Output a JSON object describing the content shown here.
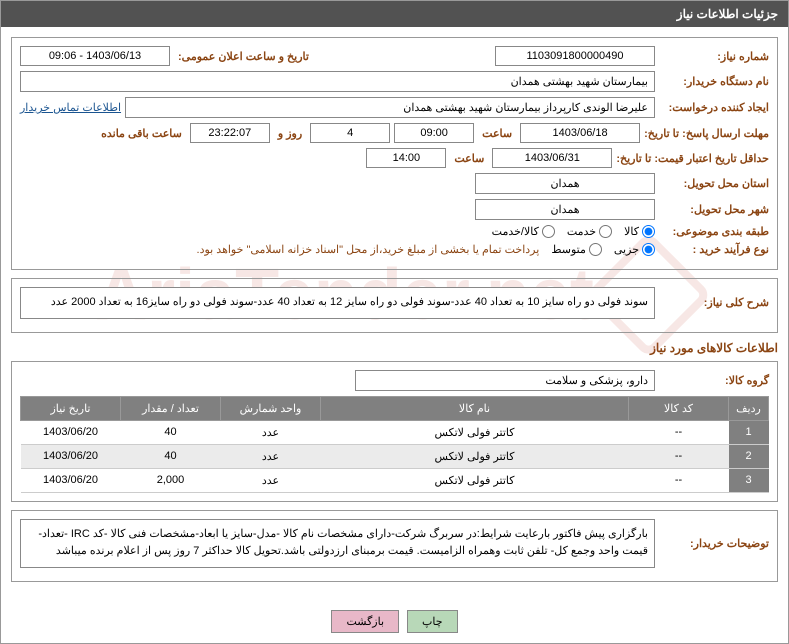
{
  "header": {
    "title": "جزئیات اطلاعات نیاز"
  },
  "fields": {
    "need_no_label": "شماره نیاز:",
    "need_no": "1103091800000490",
    "announce_label": "تاریخ و ساعت اعلان عمومی:",
    "announce": "1403/06/13 - 09:06",
    "buyer_label": "نام دستگاه خریدار:",
    "buyer": "بیمارستان شهید بهشتی همدان",
    "requester_label": "ایجاد کننده درخواست:",
    "requester": "علیرضا الوندی کارپرداز بیمارستان شهید بهشتی همدان",
    "contact_link": "اطلاعات تماس خریدار",
    "reply_deadline_label": "مهلت ارسال پاسخ: تا تاریخ:",
    "reply_date": "1403/06/18",
    "time_label": "ساعت",
    "reply_time": "09:00",
    "days": "4",
    "days_label": "روز و",
    "remaining_time": "23:22:07",
    "remaining_label": "ساعت باقی مانده",
    "validity_label": "حداقل تاریخ اعتبار قیمت: تا تاریخ:",
    "validity_date": "1403/06/31",
    "validity_time": "14:00",
    "province_label": "استان محل تحویل:",
    "province": "همدان",
    "city_label": "شهر محل تحویل:",
    "city": "همدان",
    "category_label": "طبقه بندی موضوعی:",
    "process_label": "نوع فرآیند خرید :",
    "payment_note": "پرداخت تمام یا بخشی از مبلغ خرید،از محل \"اسناد خزانه اسلامی\" خواهد بود."
  },
  "radios": {
    "category": [
      {
        "label": "کالا",
        "checked": true
      },
      {
        "label": "خدمت",
        "checked": false
      },
      {
        "label": "کالا/خدمت",
        "checked": false
      }
    ],
    "process": [
      {
        "label": "جزیی",
        "checked": true
      },
      {
        "label": "متوسط",
        "checked": false
      }
    ]
  },
  "description": {
    "title": "شرح کلی نیاز:",
    "text": "سوند فولی دو راه سایز 10 به تعداد 40 عدد-سوند فولی دو راه سایز 12 به تعداد 40 عدد-سوند فولی دو راه سایز16 به تعداد 2000 عدد"
  },
  "items_section": {
    "title": "اطلاعات کالاهای مورد نیاز",
    "group_label": "گروه کالا:",
    "group": "دارو، پزشکی و سلامت"
  },
  "table": {
    "headers": [
      "ردیف",
      "کد کالا",
      "نام کالا",
      "واحد شمارش",
      "تعداد / مقدار",
      "تاریخ نیاز"
    ],
    "rows": [
      {
        "idx": "1",
        "code": "--",
        "name": "کاتتر فولی لاتکس",
        "unit": "عدد",
        "qty": "40",
        "date": "1403/06/20"
      },
      {
        "idx": "2",
        "code": "--",
        "name": "کاتتر فولی لاتکس",
        "unit": "عدد",
        "qty": "40",
        "date": "1403/06/20"
      },
      {
        "idx": "3",
        "code": "--",
        "name": "کاتتر فولی لاتکس",
        "unit": "عدد",
        "qty": "2,000",
        "date": "1403/06/20"
      }
    ]
  },
  "buyer_notes": {
    "label": "توضیحات خریدار:",
    "text": "بارگزاری پیش فاکتور بارعایت شرایط:در سربرگ شرکت-دارای مشخصات نام کالا -مدل-سایز یا ابعاد-مشخصات فنی کالا -کد IRC -تعداد-قیمت واحد وجمع کل- تلفن ثابت وهمراه الزامیست. قیمت برمبنای ارزدولتی باشد.تحویل کالا حداکثر 7 روز پس از اعلام برنده میباشد"
  },
  "buttons": {
    "print": "چاپ",
    "back": "بازگشت"
  },
  "watermark": "AriaTender.net"
}
